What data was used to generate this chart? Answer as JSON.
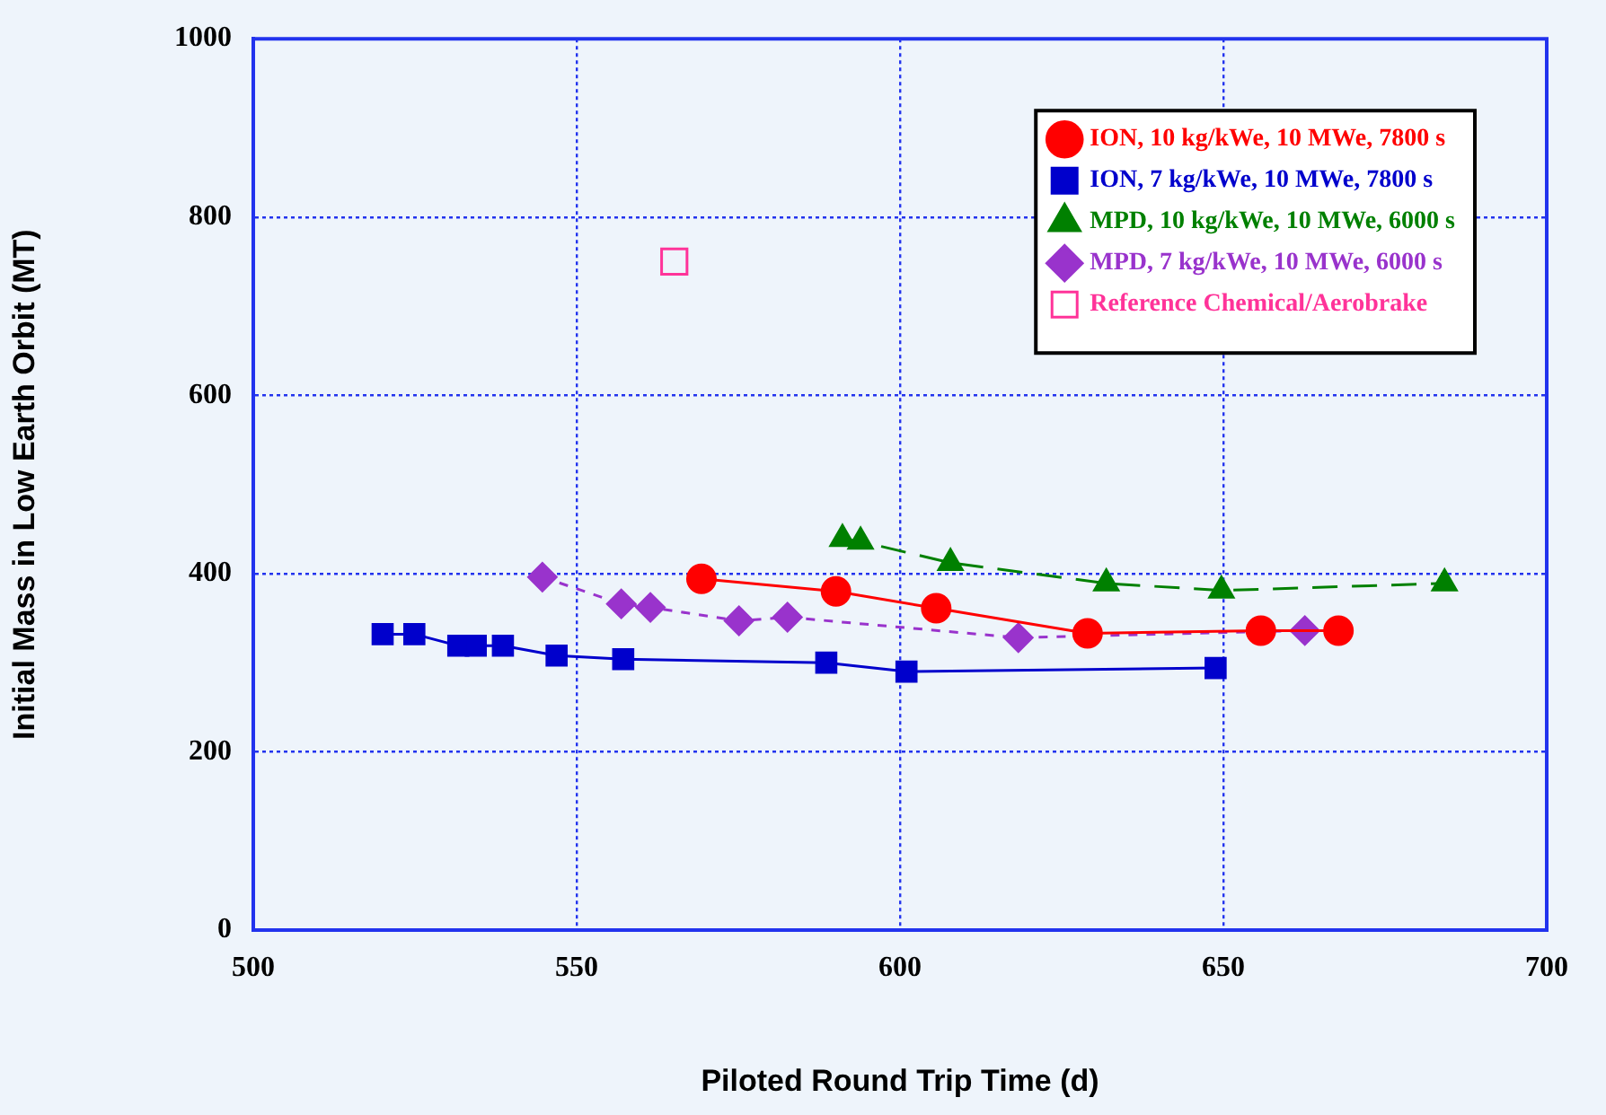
{
  "chart_data": {
    "type": "line",
    "xlabel": "Piloted Round Trip Time (d)",
    "ylabel": "Initial Mass in Low Earth Orbit (MT)",
    "xlim": [
      500,
      700
    ],
    "xticks": [
      500,
      550,
      600,
      650,
      700
    ],
    "ylim": [
      0,
      1000
    ],
    "yticks": [
      0,
      200,
      400,
      600,
      800,
      1000
    ],
    "grid": true,
    "legend": "top right",
    "series": [
      {
        "name": "ION, 10 kg/kWe, 10 MWe, 7800 s",
        "color": "#ff0000",
        "marker": "circle",
        "line_style": "solid",
        "x": [
          569.3,
          590.1,
          605.6,
          629.0,
          655.8,
          667.8
        ],
        "values": [
          394,
          380,
          361,
          333,
          336,
          336
        ]
      },
      {
        "name": "ION, 7 kg/kWe, 10 MWe, 7800 s",
        "color": "#0000cc",
        "marker": "square",
        "line_style": "solid",
        "x": [
          520.0,
          524.9,
          531.7,
          534.4,
          538.6,
          546.9,
          557.2,
          588.6,
          601.0,
          648.8
        ],
        "values": [
          332,
          332,
          319,
          319,
          319,
          308,
          304,
          300,
          290,
          294
        ]
      },
      {
        "name": "MPD, 10 kg/kWe, 10 MWe, 6000 s",
        "color": "#008000",
        "marker": "triangle",
        "line_style": "dashed",
        "x": [
          591.1,
          593.9,
          607.8,
          631.9,
          649.7,
          684.2
        ],
        "values": [
          439,
          436,
          412,
          389,
          381,
          389
        ]
      },
      {
        "name": "MPD, 7 kg/kWe, 10 MWe, 6000 s",
        "color": "#9933cc",
        "marker": "diamond",
        "line_style": "dotted",
        "x": [
          544.7,
          556.9,
          561.4,
          575.1,
          582.6,
          618.3,
          662.6
        ],
        "values": [
          396,
          366,
          362,
          347,
          351,
          328,
          336
        ]
      },
      {
        "name": "Reference Chemical/Aerobrake",
        "color": "#ff3399",
        "type": "scatter",
        "marker": "square",
        "x": [
          565.1
        ],
        "values": [
          750
        ]
      }
    ]
  }
}
